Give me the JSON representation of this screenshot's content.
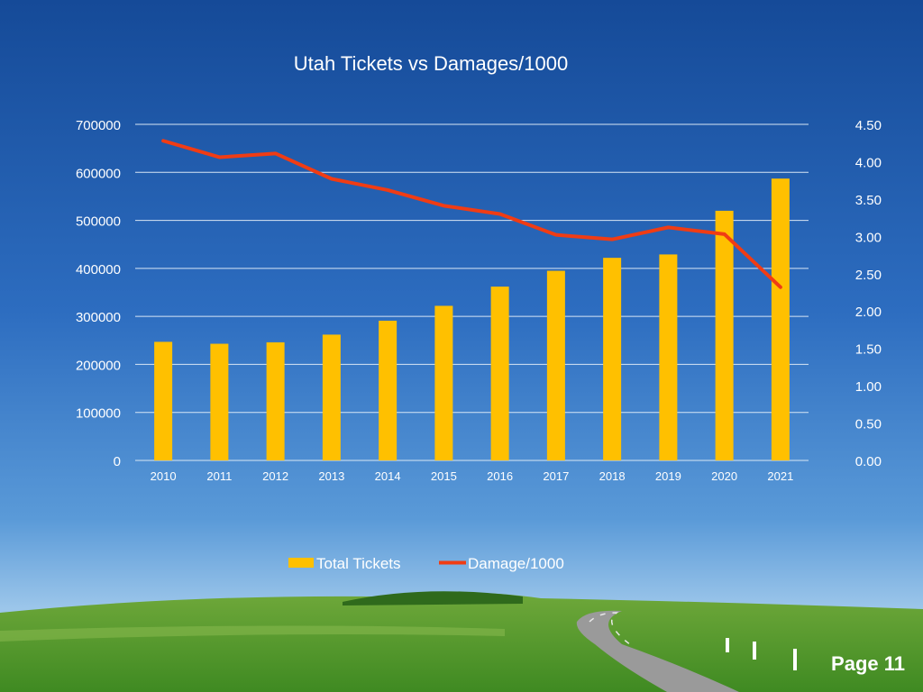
{
  "slide": {
    "page_label": "Page 11"
  },
  "colors": {
    "bar": "#FFC000",
    "line": "#F03C14",
    "grid": "#D8E6F5",
    "text": "#FFFFFF"
  },
  "chart_data": {
    "type": "bar",
    "title": "Utah Tickets vs Damages/1000",
    "categories": [
      "2010",
      "2011",
      "2012",
      "2013",
      "2014",
      "2015",
      "2016",
      "2017",
      "2018",
      "2019",
      "2020",
      "2021"
    ],
    "series": [
      {
        "name": "Total Tickets",
        "type": "bar",
        "axis": "left",
        "values": [
          247000,
          243000,
          246000,
          262000,
          291000,
          322000,
          362000,
          395000,
          422000,
          429000,
          520000,
          587000
        ]
      },
      {
        "name": "Damage/1000",
        "type": "line",
        "axis": "right",
        "values": [
          4.28,
          4.06,
          4.11,
          3.77,
          3.62,
          3.41,
          3.3,
          3.02,
          2.96,
          3.12,
          3.03,
          2.32
        ]
      }
    ],
    "y_left": {
      "min": 0,
      "max": 700000,
      "step": 100000,
      "ticks": [
        "0",
        "100000",
        "200000",
        "300000",
        "400000",
        "500000",
        "600000",
        "700000"
      ]
    },
    "y_right": {
      "min": 0,
      "max": 4.5,
      "step": 0.5,
      "ticks": [
        "0.00",
        "0.50",
        "1.00",
        "1.50",
        "2.00",
        "2.50",
        "3.00",
        "3.50",
        "4.00",
        "4.50"
      ]
    },
    "grid": true,
    "legend": "bottom"
  }
}
